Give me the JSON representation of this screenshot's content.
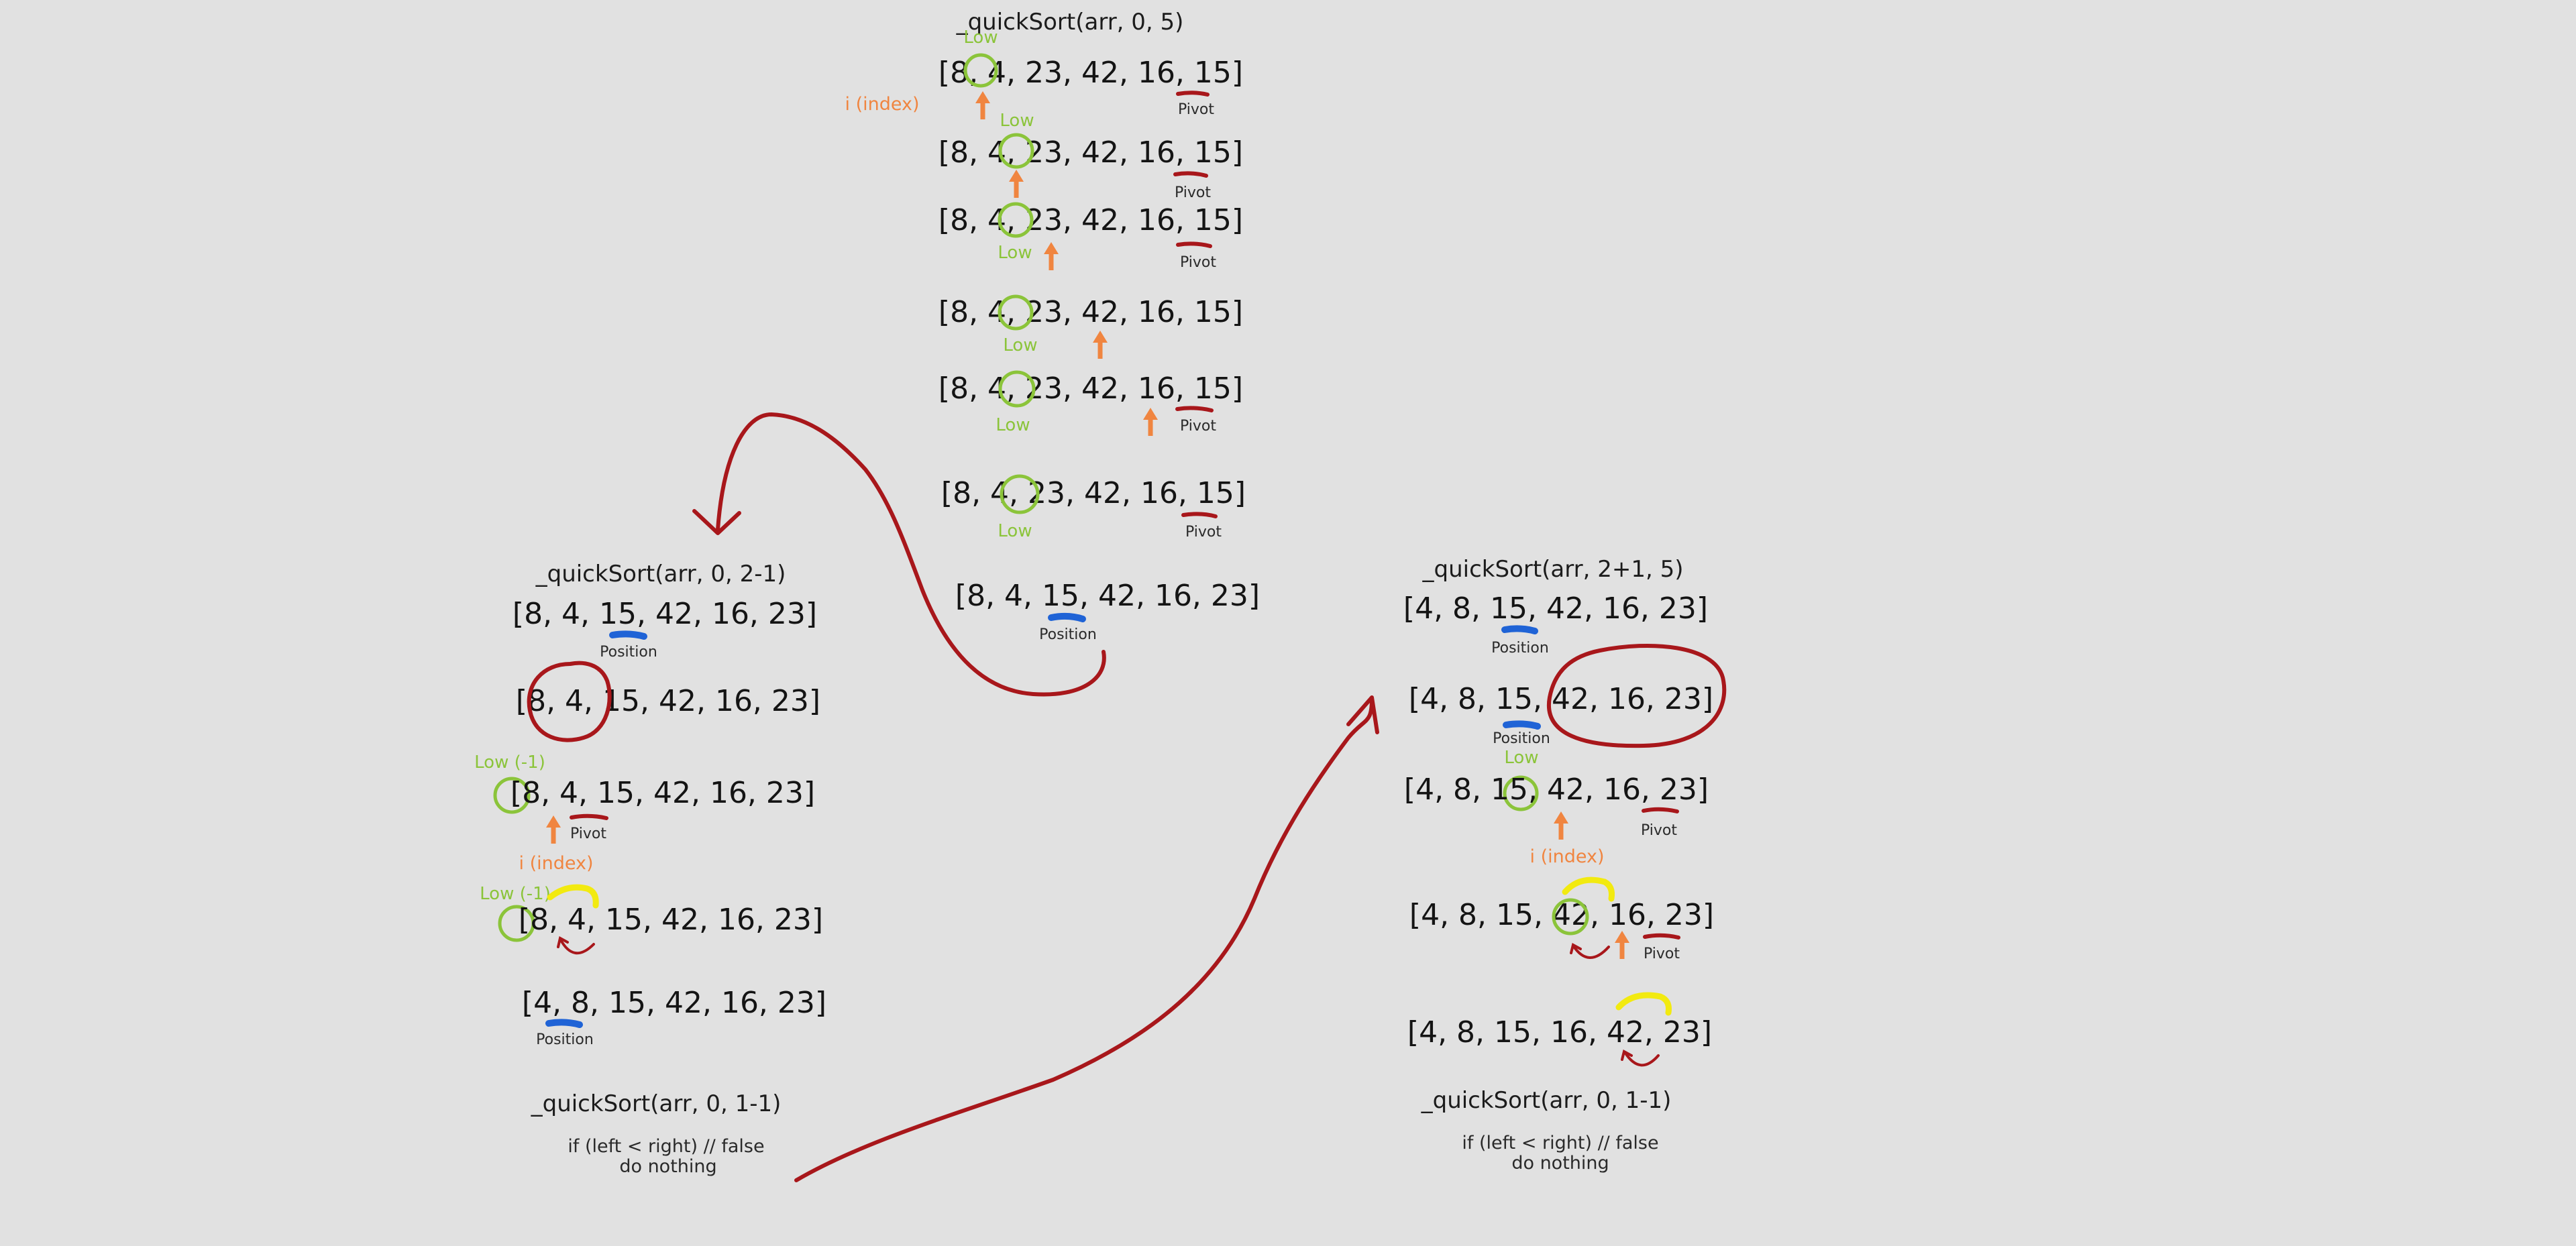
{
  "top": {
    "call": "_quickSort(arr, 0, 5)",
    "rows": [
      "[8, 4, 23, 42, 16, 15]",
      "[8, 4, 23, 42, 16, 15]",
      "[8, 4, 23, 42, 16, 15]",
      "[8, 4, 23, 42, 16, 15]",
      "[8, 4, 23, 42, 16, 15]",
      "[8, 4, 23, 42, 16, 15]",
      "[8, 4, 15, 42, 16, 23]"
    ],
    "low": "Low",
    "index": "i (index)",
    "pivot": "Pivot",
    "position": "Position"
  },
  "left": {
    "call": "_quickSort(arr, 0, 2-1)",
    "rows": [
      "[8, 4, 15, 42, 16, 23]",
      "[8, 4, 15, 42, 16, 23]",
      "[8, 4, 15, 42, 16, 23]",
      "[8, 4, 15, 42, 16, 23]",
      "[4, 8, 15, 42, 16, 23]"
    ],
    "position": "Position",
    "low_minus": "Low (-1)",
    "pivot": "Pivot",
    "index": "i (index)",
    "call_end": "_quickSort(arr, 0, 1-1)",
    "note1": "if (left < right)  // false",
    "note2": "do nothing"
  },
  "right": {
    "call": "_quickSort(arr, 2+1, 5)",
    "rows": [
      "[4, 8, 15, 42, 16, 23]",
      "[4, 8, 15, 42, 16, 23]",
      "[4, 8, 15, 42, 16, 23]",
      "[4, 8, 15, 42, 16, 23]",
      "[4, 8, 15, 16, 42, 23]"
    ],
    "position": "Position",
    "low": "Low",
    "pivot": "Pivot",
    "index": "i (index)",
    "call_end": "_quickSort(arr, 0, 1-1)",
    "note1": "if (left < right)  // false",
    "note2": "do nothing"
  },
  "colors": {
    "background": "#e1e1e1",
    "red_ink": "#a8171b",
    "low_green": "#8bc43a",
    "index_orange": "#f08540",
    "position_blue": "#1f63d6",
    "swap_yellow": "#f2ea10"
  }
}
